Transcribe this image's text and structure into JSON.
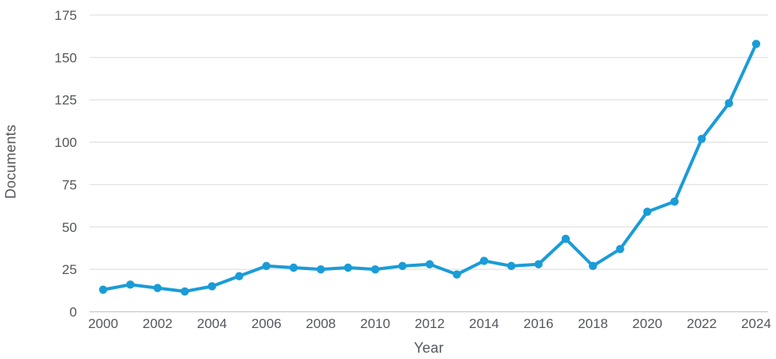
{
  "chart_data": {
    "type": "line",
    "x": [
      2000,
      2001,
      2002,
      2003,
      2004,
      2005,
      2006,
      2007,
      2008,
      2009,
      2010,
      2011,
      2012,
      2013,
      2014,
      2015,
      2016,
      2017,
      2018,
      2019,
      2020,
      2021,
      2022,
      2023,
      2024
    ],
    "values": [
      13,
      16,
      14,
      12,
      15,
      21,
      27,
      26,
      25,
      26,
      25,
      27,
      28,
      22,
      30,
      27,
      28,
      43,
      27,
      37,
      59,
      65,
      102,
      123,
      158
    ],
    "series_name": "Documents",
    "xlabel": "Year",
    "ylabel": "Documents",
    "ylim": [
      0,
      175
    ],
    "yticks": [
      0,
      25,
      50,
      75,
      100,
      125,
      150,
      175
    ],
    "x_tick_labels": [
      2000,
      2002,
      2004,
      2006,
      2008,
      2010,
      2012,
      2014,
      2016,
      2018,
      2020,
      2022,
      2024
    ],
    "grid": "horizontal",
    "legend": "none",
    "marker": "circle",
    "colors": {
      "line": "#1a9cd8",
      "grid": "#e2e2e2",
      "zero_axis": "#c9c9c9",
      "text": "#54565b",
      "background": "#ffffff"
    }
  }
}
